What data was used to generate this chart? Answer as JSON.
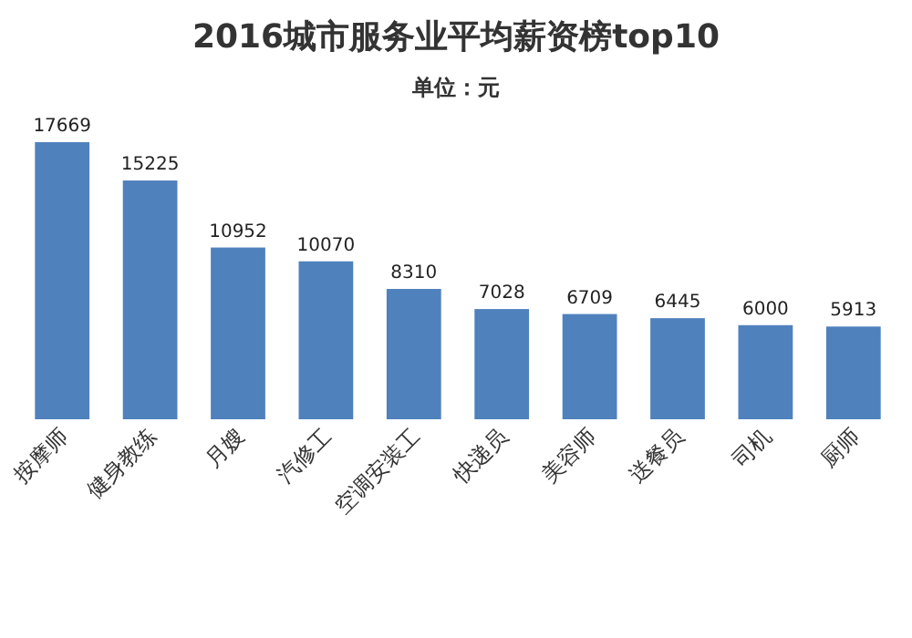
{
  "chart_data": {
    "type": "bar",
    "title": "2016城市服务业平均薪资榜top10",
    "subtitle": "单位：元",
    "categories": [
      "按摩师",
      "健身教练",
      "月嫂",
      "汽修工",
      "空调安装工",
      "快递员",
      "美容师",
      "送餐员",
      "司机",
      "厨师"
    ],
    "values": [
      17669,
      15225,
      10952,
      10070,
      8310,
      7028,
      6709,
      6445,
      6000,
      5913
    ],
    "color": "#4f81bd",
    "data_labels": true
  }
}
